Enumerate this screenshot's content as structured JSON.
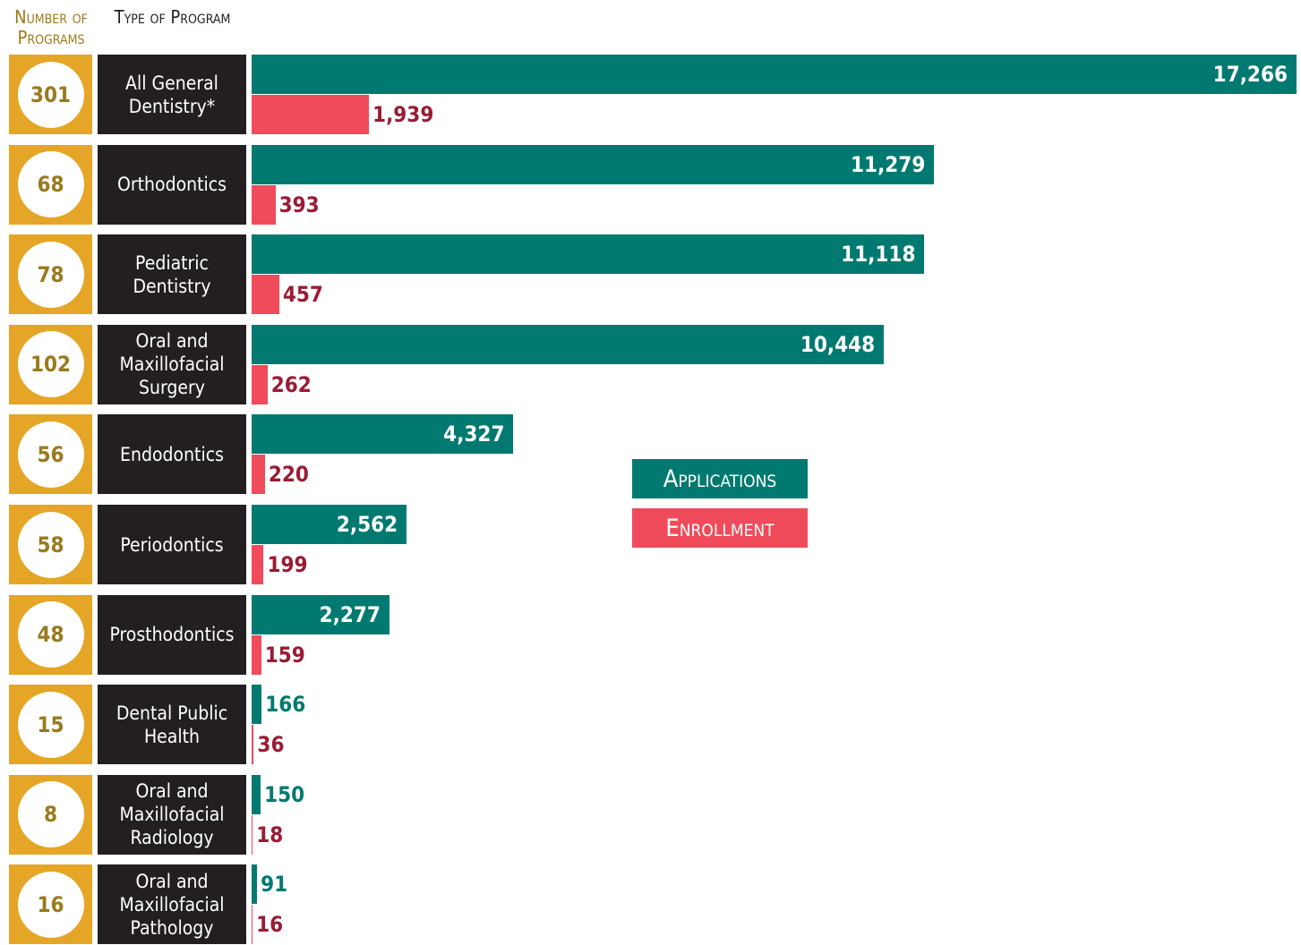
{
  "chart_data": {
    "type": "bar",
    "column_headers": [
      "Number of Programs",
      "Type of Program"
    ],
    "categories": [
      "All General Dentistry*",
      "Orthodontics",
      "Pediatric Dentistry",
      "Oral and Maxillofacial Surgery",
      "Endodontics",
      "Periodontics",
      "Prosthodontics",
      "Dental Public Health",
      "Oral and Maxillofacial Radiology",
      "Oral and Maxillofacial Pathology"
    ],
    "programs": [
      301,
      68,
      78,
      102,
      56,
      58,
      48,
      15,
      8,
      16
    ],
    "series": [
      {
        "name": "Applications",
        "color": "#007a70",
        "values": [
          17266,
          11279,
          11118,
          10448,
          4327,
          2562,
          2277,
          166,
          150,
          91
        ],
        "value_labels": [
          "17,266",
          "11,279",
          "11,118",
          "10,448",
          "4,327",
          "2,562",
          "2,277",
          "166",
          "150",
          "91"
        ]
      },
      {
        "name": "Enrollment",
        "color": "#f04b5a",
        "values": [
          1939,
          393,
          457,
          262,
          220,
          199,
          159,
          36,
          18,
          16
        ],
        "value_labels": [
          "1,939",
          "393",
          "457",
          "262",
          "220",
          "199",
          "159",
          "36",
          "18",
          "16"
        ]
      }
    ]
  }
}
